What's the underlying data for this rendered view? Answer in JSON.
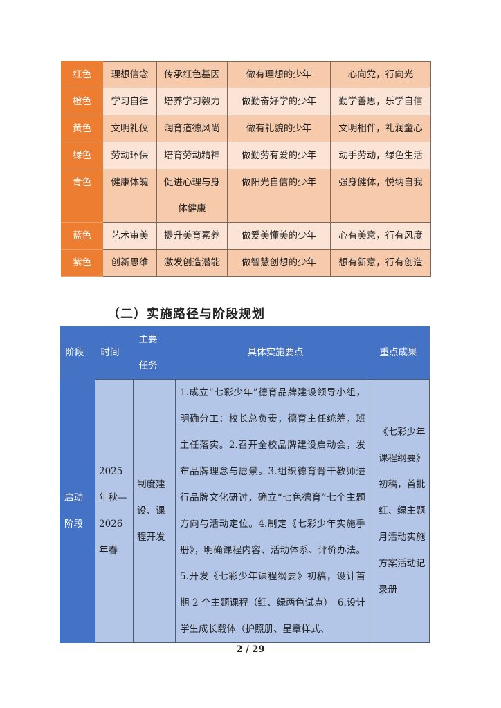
{
  "color_table": {
    "rows": [
      {
        "color": "红色",
        "theme": "理想信念",
        "goal": "传承红色基因",
        "image": "做有理想的少年",
        "motto": "心向党，行向光",
        "shade": "dark"
      },
      {
        "color": "橙色",
        "theme": "学习自律",
        "goal": "培养学习毅力",
        "image": "做勤奋好学的少年",
        "motto": "勤学善思，乐学自信",
        "shade": "light"
      },
      {
        "color": "黄色",
        "theme": "文明礼仪",
        "goal": "润育道德风尚",
        "image": "做有礼貌的少年",
        "motto": "文明相伴，礼润童心",
        "shade": "dark"
      },
      {
        "color": "绿色",
        "theme": "劳动环保",
        "goal": "培育劳动精神",
        "image": "做勤劳有爱的少年",
        "motto": "动手劳动，绿色生活",
        "shade": "light"
      },
      {
        "color": "青色",
        "theme": "健康体魄",
        "goal": "促进心理与身体健康",
        "image": "做阳光自信的少年",
        "motto": "强身健体，悦纳自我",
        "shade": "dark"
      },
      {
        "color": "蓝色",
        "theme": "艺术审美",
        "goal": "提升美育素养",
        "image": "做爱美懂美的少年",
        "motto": "心有美意，行有风度",
        "shade": "light"
      },
      {
        "color": "紫色",
        "theme": "创新思维",
        "goal": "激发创造潜能",
        "image": "做智慧创想的少年",
        "motto": "想有新意，行有创造",
        "shade": "dark"
      }
    ]
  },
  "section_heading": "（二）实施路径与阶段规划",
  "plan_table": {
    "headers": [
      "阶段",
      "时间",
      "主要任务",
      "具体实施要点",
      "重点成果"
    ],
    "rows": [
      {
        "stage": "启动阶段",
        "time": "2025年秋—2026年春",
        "task": "制度建设、课程开发",
        "details": "1.成立“七彩少年”德育品牌建设领导小组，明确分工：校长总负责，德育主任统筹，班主任落实。2.召开全校品牌建设启动会，发布品牌理念与愿景。3.组织德育骨干教师进行品牌文化研讨，确立“七色德育”七个主题方向与活动定位。4.制定《七彩少年实施手册》，明确课程内容、活动体系、评价办法。5.开发《七彩少年课程纲要》初稿，设计首期 2 个主题课程（红、绿两色试点）。6.设计学生成长载体（护照册、星章样式、",
        "results": "《七彩少年课程纲要》初稿，首批红、绿主题月活动实施方案活动记录册"
      }
    ]
  },
  "footer": {
    "page": "2 / 29"
  },
  "colors": {
    "orange_accent": "#ed7d31",
    "peach_dark": "#f7caac",
    "peach_light": "#fbe4d6",
    "blue_header": "#4472c4",
    "blue_light": "#b4c6e7"
  }
}
